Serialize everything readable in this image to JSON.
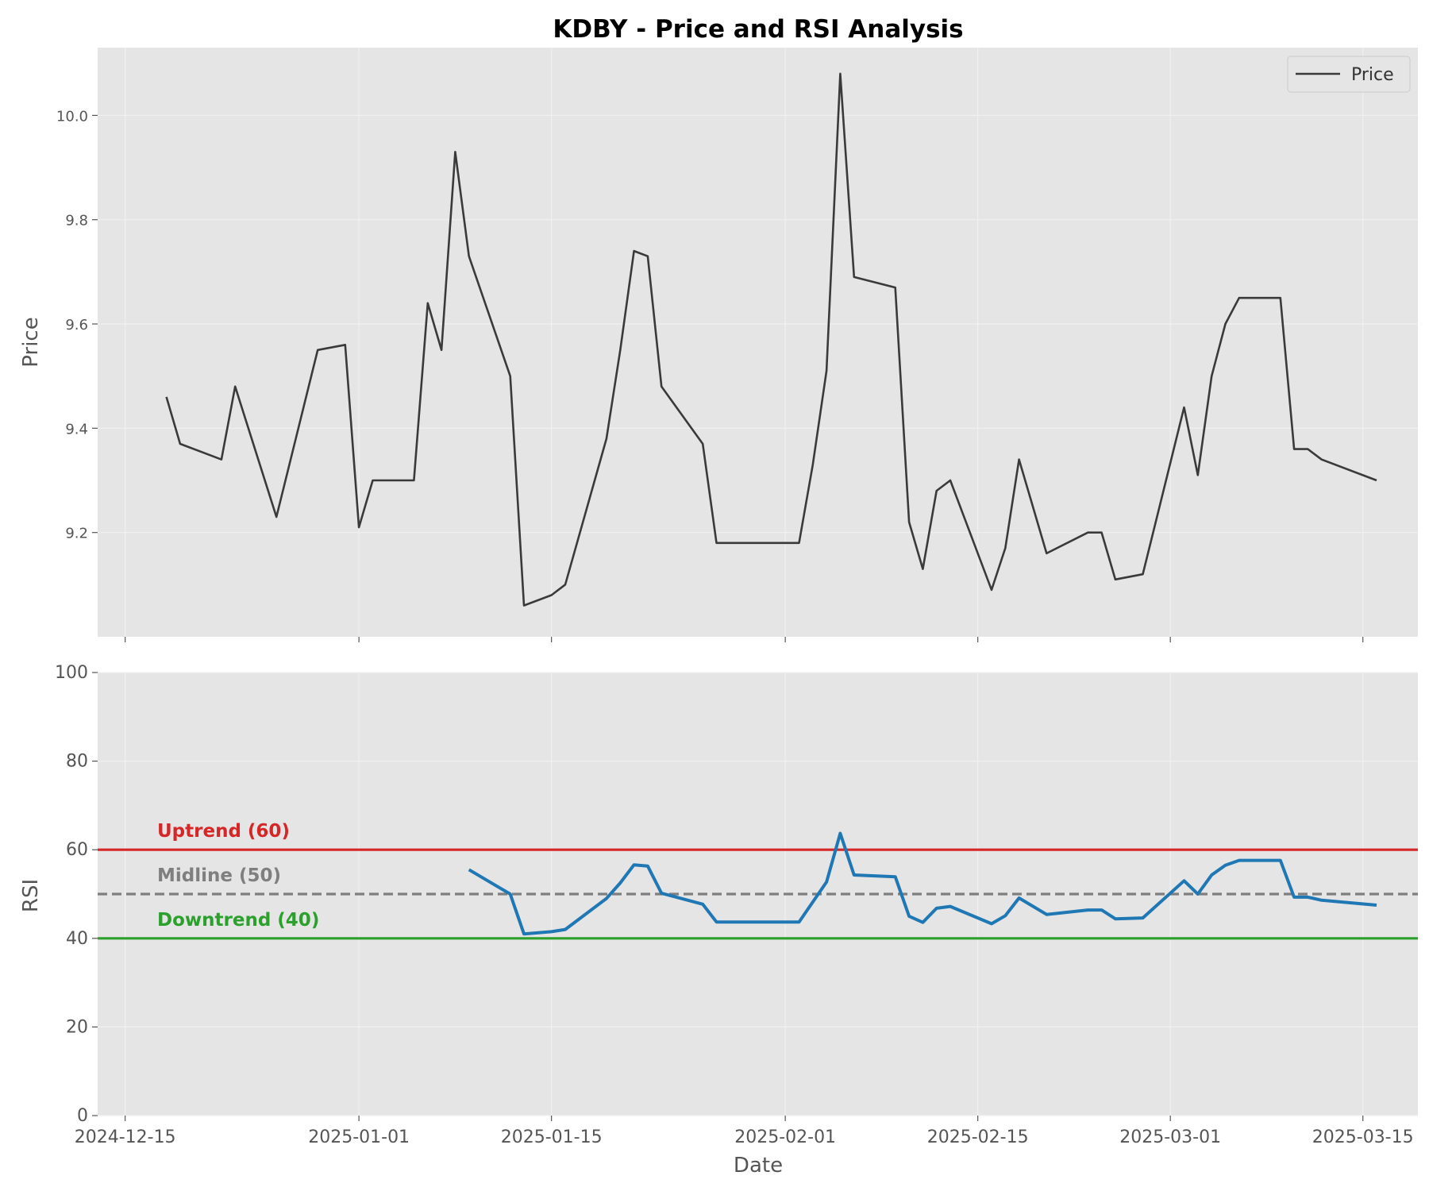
{
  "chart_data": {
    "title": "KDBY - Price and RSI Analysis",
    "xlabel": "Date",
    "x_range": [
      "2024-12-13",
      "2025-03-19"
    ],
    "x_ticks": [
      "2024-12-15",
      "2025-01-01",
      "2025-01-15",
      "2025-02-01",
      "2025-02-15",
      "2025-03-01",
      "2025-03-15"
    ],
    "panels": [
      {
        "type": "line",
        "ylabel": "Price",
        "ylim": [
          9.0,
          10.13
        ],
        "y_ticks": [
          "9.2",
          "9.4",
          "9.6",
          "9.8",
          "10.0"
        ],
        "grid": true,
        "legend": "top-right",
        "series": [
          {
            "name": "Price",
            "color": "#3a3a3a",
            "points": [
              [
                "2024-12-18",
                9.46
              ],
              [
                "2024-12-19",
                9.37
              ],
              [
                "2024-12-22",
                9.34
              ],
              [
                "2024-12-23",
                9.48
              ],
              [
                "2024-12-26",
                9.23
              ],
              [
                "2024-12-29",
                9.55
              ],
              [
                "2024-12-31",
                9.56
              ],
              [
                "2025-01-01",
                9.21
              ],
              [
                "2025-01-02",
                9.3
              ],
              [
                "2025-01-05",
                9.3
              ],
              [
                "2025-01-06",
                9.64
              ],
              [
                "2025-01-07",
                9.55
              ],
              [
                "2025-01-08",
                9.93
              ],
              [
                "2025-01-09",
                9.73
              ],
              [
                "2025-01-12",
                9.5
              ],
              [
                "2025-01-13",
                9.06
              ],
              [
                "2025-01-15",
                9.08
              ],
              [
                "2025-01-16",
                9.1
              ],
              [
                "2025-01-19",
                9.38
              ],
              [
                "2025-01-20",
                9.55
              ],
              [
                "2025-01-21",
                9.74
              ],
              [
                "2025-01-22",
                9.73
              ],
              [
                "2025-01-23",
                9.48
              ],
              [
                "2025-01-26",
                9.37
              ],
              [
                "2025-01-27",
                9.18
              ],
              [
                "2025-02-02",
                9.18
              ],
              [
                "2025-02-03",
                9.33
              ],
              [
                "2025-02-04",
                9.51
              ],
              [
                "2025-02-05",
                10.08
              ],
              [
                "2025-02-06",
                9.69
              ],
              [
                "2025-02-09",
                9.67
              ],
              [
                "2025-02-10",
                9.22
              ],
              [
                "2025-02-11",
                9.13
              ],
              [
                "2025-02-12",
                9.28
              ],
              [
                "2025-02-13",
                9.3
              ],
              [
                "2025-02-16",
                9.09
              ],
              [
                "2025-02-17",
                9.17
              ],
              [
                "2025-02-18",
                9.34
              ],
              [
                "2025-02-20",
                9.16
              ],
              [
                "2025-02-23",
                9.2
              ],
              [
                "2025-02-24",
                9.2
              ],
              [
                "2025-02-25",
                9.11
              ],
              [
                "2025-02-27",
                9.12
              ],
              [
                "2025-03-02",
                9.44
              ],
              [
                "2025-03-03",
                9.31
              ],
              [
                "2025-03-04",
                9.5
              ],
              [
                "2025-03-05",
                9.6
              ],
              [
                "2025-03-06",
                9.65
              ],
              [
                "2025-03-09",
                9.65
              ],
              [
                "2025-03-10",
                9.36
              ],
              [
                "2025-03-11",
                9.36
              ],
              [
                "2025-03-12",
                9.34
              ],
              [
                "2025-03-16",
                9.3
              ]
            ]
          }
        ]
      },
      {
        "type": "line",
        "ylabel": "RSI",
        "ylim": [
          0,
          100
        ],
        "y_ticks": [
          "0",
          "20",
          "40",
          "60",
          "80",
          "100"
        ],
        "grid": true,
        "series": [
          {
            "name": "RSI",
            "color": "#1f77b4",
            "points": [
              [
                "2025-01-09",
                55.5
              ],
              [
                "2025-01-12",
                50.0
              ],
              [
                "2025-01-13",
                41.0
              ],
              [
                "2025-01-15",
                41.5
              ],
              [
                "2025-01-16",
                42.0
              ],
              [
                "2025-01-19",
                49.0
              ],
              [
                "2025-01-20",
                52.5
              ],
              [
                "2025-01-21",
                56.6
              ],
              [
                "2025-01-22",
                56.3
              ],
              [
                "2025-01-23",
                50.2
              ],
              [
                "2025-01-26",
                47.7
              ],
              [
                "2025-01-27",
                43.7
              ],
              [
                "2025-02-02",
                43.7
              ],
              [
                "2025-02-04",
                52.7
              ],
              [
                "2025-02-05",
                63.7
              ],
              [
                "2025-02-06",
                54.3
              ],
              [
                "2025-02-09",
                53.9
              ],
              [
                "2025-02-10",
                45.0
              ],
              [
                "2025-02-11",
                43.6
              ],
              [
                "2025-02-12",
                46.8
              ],
              [
                "2025-02-13",
                47.2
              ],
              [
                "2025-02-16",
                43.3
              ],
              [
                "2025-02-17",
                45.1
              ],
              [
                "2025-02-18",
                49.1
              ],
              [
                "2025-02-20",
                45.4
              ],
              [
                "2025-02-23",
                46.4
              ],
              [
                "2025-02-24",
                46.4
              ],
              [
                "2025-02-25",
                44.4
              ],
              [
                "2025-02-27",
                44.6
              ],
              [
                "2025-03-02",
                53.0
              ],
              [
                "2025-03-03",
                50.0
              ],
              [
                "2025-03-04",
                54.3
              ],
              [
                "2025-03-05",
                56.5
              ],
              [
                "2025-03-06",
                57.6
              ],
              [
                "2025-03-09",
                57.6
              ],
              [
                "2025-03-10",
                49.3
              ],
              [
                "2025-03-11",
                49.3
              ],
              [
                "2025-03-12",
                48.6
              ],
              [
                "2025-03-16",
                47.5
              ]
            ]
          }
        ],
        "reference_lines": [
          {
            "label": "Uptrend (60)",
            "value": 60,
            "color": "#d62728",
            "style": "solid"
          },
          {
            "label": "Midline (50)",
            "value": 50,
            "color": "#7f7f7f",
            "style": "dashed"
          },
          {
            "label": "Downtrend (40)",
            "value": 40,
            "color": "#2ca02c",
            "style": "solid"
          }
        ]
      }
    ]
  }
}
